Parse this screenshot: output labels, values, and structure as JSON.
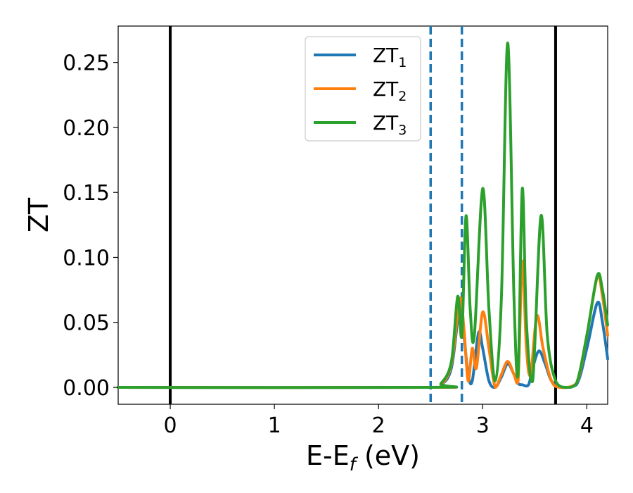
{
  "chart_data": {
    "type": "line",
    "xlabel_main": "E-E",
    "xlabel_sub": "f",
    "xlabel_unit": " (eV)",
    "ylabel": "ZT",
    "xlim": [
      -0.5,
      4.2
    ],
    "ylim": [
      -0.013,
      0.278
    ],
    "x_ticks": [
      0,
      1,
      2,
      3,
      4
    ],
    "x_tick_labels": [
      "0",
      "1",
      "2",
      "3",
      "4"
    ],
    "y_ticks": [
      0.0,
      0.05,
      0.1,
      0.15,
      0.2,
      0.25
    ],
    "y_tick_labels": [
      "0.00",
      "0.05",
      "0.10",
      "0.15",
      "0.20",
      "0.25"
    ],
    "grid": false,
    "legend_position": "top-center",
    "vertical_lines": [
      {
        "x": 0.0,
        "style": "solid",
        "color": "#000000"
      },
      {
        "x": 3.7,
        "style": "solid",
        "color": "#000000"
      },
      {
        "x": 2.5,
        "style": "dashed",
        "color": "#1f77b4"
      },
      {
        "x": 2.8,
        "style": "dashed",
        "color": "#1f77b4"
      }
    ],
    "series": [
      {
        "name": "ZT",
        "sub": "1",
        "color": "#1f77b4",
        "points": [
          [
            -0.5,
            0
          ],
          [
            2.5,
            0
          ],
          [
            2.6,
            0.002
          ],
          [
            2.7,
            0.015
          ],
          [
            2.78,
            0.062
          ],
          [
            2.82,
            0.04
          ],
          [
            2.86,
            0.01
          ],
          [
            2.9,
            0.005
          ],
          [
            2.96,
            0.042
          ],
          [
            3.0,
            0.03
          ],
          [
            3.06,
            0.005
          ],
          [
            3.12,
            0
          ],
          [
            3.18,
            0.008
          ],
          [
            3.24,
            0.018
          ],
          [
            3.3,
            0.01
          ],
          [
            3.34,
            0.003
          ],
          [
            3.38,
            0.002
          ],
          [
            3.44,
            0.002
          ],
          [
            3.48,
            0.015
          ],
          [
            3.54,
            0.028
          ],
          [
            3.6,
            0.018
          ],
          [
            3.66,
            0.005
          ],
          [
            3.75,
            0
          ],
          [
            3.9,
            0.002
          ],
          [
            4.0,
            0.03
          ],
          [
            4.1,
            0.065
          ],
          [
            4.15,
            0.05
          ],
          [
            4.2,
            0.022
          ]
        ]
      },
      {
        "name": "ZT",
        "sub": "2",
        "color": "#ff7f0e",
        "points": [
          [
            -0.5,
            0
          ],
          [
            2.5,
            0
          ],
          [
            2.6,
            0.002
          ],
          [
            2.7,
            0.018
          ],
          [
            2.78,
            0.068
          ],
          [
            2.82,
            0.045
          ],
          [
            2.86,
            0.005
          ],
          [
            2.9,
            0.03
          ],
          [
            2.94,
            0.015
          ],
          [
            3.0,
            0.058
          ],
          [
            3.06,
            0.03
          ],
          [
            3.12,
            0
          ],
          [
            3.18,
            0.01
          ],
          [
            3.24,
            0.02
          ],
          [
            3.3,
            0.01
          ],
          [
            3.34,
            0.005
          ],
          [
            3.38,
            0.097
          ],
          [
            3.42,
            0.03
          ],
          [
            3.46,
            0.01
          ],
          [
            3.52,
            0.055
          ],
          [
            3.58,
            0.03
          ],
          [
            3.66,
            0.005
          ],
          [
            3.75,
            0
          ],
          [
            3.9,
            0.003
          ],
          [
            4.0,
            0.04
          ],
          [
            4.1,
            0.085
          ],
          [
            4.15,
            0.07
          ],
          [
            4.2,
            0.04
          ]
        ]
      },
      {
        "name": "ZT",
        "sub": "3",
        "color": "#2ca02c",
        "points": [
          [
            -0.5,
            0
          ],
          [
            2.5,
            0
          ],
          [
            2.6,
            0.003
          ],
          [
            2.7,
            0.02
          ],
          [
            2.76,
            0.07
          ],
          [
            2.8,
            0.04
          ],
          [
            2.84,
            0.132
          ],
          [
            2.88,
            0.06
          ],
          [
            2.92,
            0.04
          ],
          [
            3.0,
            0.153
          ],
          [
            3.06,
            0.06
          ],
          [
            3.12,
            0.005
          ],
          [
            3.18,
            0.07
          ],
          [
            3.24,
            0.265
          ],
          [
            3.3,
            0.07
          ],
          [
            3.34,
            0.01
          ],
          [
            3.38,
            0.153
          ],
          [
            3.42,
            0.05
          ],
          [
            3.48,
            0.005
          ],
          [
            3.56,
            0.132
          ],
          [
            3.62,
            0.04
          ],
          [
            3.7,
            0.005
          ],
          [
            3.8,
            0
          ],
          [
            3.9,
            0.003
          ],
          [
            4.0,
            0.04
          ],
          [
            4.1,
            0.086
          ],
          [
            4.15,
            0.075
          ],
          [
            4.2,
            0.048
          ]
        ]
      }
    ]
  }
}
